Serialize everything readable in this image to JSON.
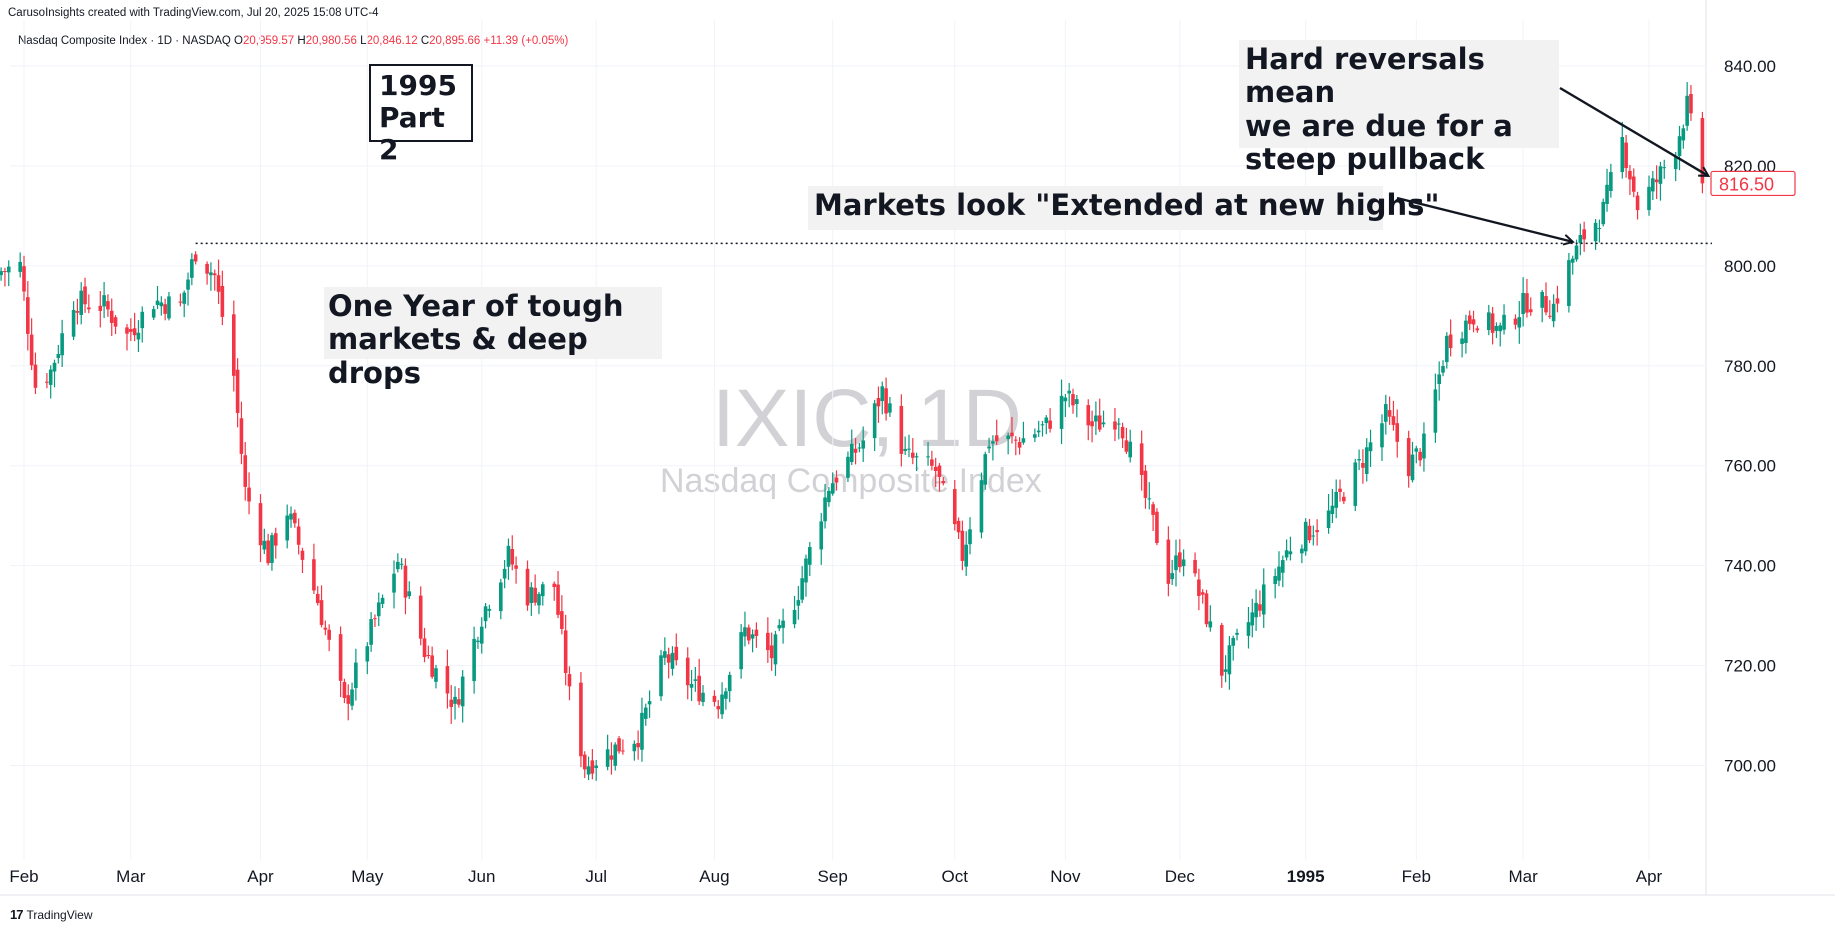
{
  "header": {
    "credit": "CarusoInsights created with TradingView.com, Jul 20, 2025 15:08 UTC-4"
  },
  "legend": {
    "symbol": "Nasdaq Composite Index · 1D · NASDAQ",
    "open_label": "O",
    "open": "20,959.57",
    "high_label": "H",
    "high": "20,980.56",
    "low_label": "L",
    "low": "20,846.12",
    "close_label": "C",
    "close": "20,895.66",
    "change": "+11.39 (+0.05%)"
  },
  "watermark": {
    "ticker": "IXIC, 1D",
    "name": "Nasdaq Composite Index"
  },
  "annotations": {
    "box_1995": {
      "line1": "1995",
      "line2": "Part 2"
    },
    "tough_markets": {
      "line1": "One Year of tough",
      "line2": "markets & deep drops"
    },
    "extended": "Markets look \"Extended at new highs\"",
    "reversals": {
      "line1": "Hard reversals mean",
      "line2": "we are due for a",
      "line3": "steep pullback"
    }
  },
  "branding": {
    "logo": "17",
    "name": "TradingView"
  },
  "colors": {
    "up": "#089981",
    "down": "#f23645",
    "grid": "#f0f3fa",
    "text": "#131722"
  },
  "chart_data": {
    "type": "candlestick",
    "ylim": [
      685,
      845
    ],
    "yticks": [
      700,
      720,
      740,
      760,
      780,
      800,
      820,
      840
    ],
    "ytick_labels": [
      "700.00",
      "720.00",
      "740.00",
      "760.00",
      "780.00",
      "800.00",
      "820.00",
      "840.00"
    ],
    "xticks": [
      {
        "label": "Feb",
        "date": "1994-02-01"
      },
      {
        "label": "Mar",
        "date": "1994-03-01"
      },
      {
        "label": "Apr",
        "date": "1994-04-04"
      },
      {
        "label": "May",
        "date": "1994-05-02"
      },
      {
        "label": "Jun",
        "date": "1994-06-01"
      },
      {
        "label": "Jul",
        "date": "1994-07-01"
      },
      {
        "label": "Aug",
        "date": "1994-08-01"
      },
      {
        "label": "Sep",
        "date": "1994-09-01"
      },
      {
        "label": "Oct",
        "date": "1994-10-03"
      },
      {
        "label": "Nov",
        "date": "1994-11-01"
      },
      {
        "label": "Dec",
        "date": "1994-12-01"
      },
      {
        "label": "1995",
        "date": "1995-01-03"
      },
      {
        "label": "Feb",
        "date": "1995-02-01"
      },
      {
        "label": "Mar",
        "date": "1995-03-01"
      },
      {
        "label": "Apr",
        "date": "1995-04-03"
      }
    ],
    "last_price": 816.5,
    "last_price_label": "816.50",
    "prior_high_level": 804.5,
    "anchors": [
      {
        "date": "1994-01-26",
        "close": 799
      },
      {
        "date": "1994-01-31",
        "close": 800
      },
      {
        "date": "1994-02-04",
        "close": 776
      },
      {
        "date": "1994-02-08",
        "close": 779
      },
      {
        "date": "1994-02-14",
        "close": 793
      },
      {
        "date": "1994-02-22",
        "close": 792
      },
      {
        "date": "1994-02-28",
        "close": 786
      },
      {
        "date": "1994-03-07",
        "close": 793
      },
      {
        "date": "1994-03-14",
        "close": 792
      },
      {
        "date": "1994-03-18",
        "close": 803
      },
      {
        "date": "1994-03-23",
        "close": 798
      },
      {
        "date": "1994-03-28",
        "close": 778
      },
      {
        "date": "1994-03-31",
        "close": 755
      },
      {
        "date": "1994-04-06",
        "close": 742
      },
      {
        "date": "1994-04-11",
        "close": 751
      },
      {
        "date": "1994-04-19",
        "close": 733
      },
      {
        "date": "1994-04-26",
        "close": 712
      },
      {
        "date": "1994-05-02",
        "close": 725
      },
      {
        "date": "1994-05-10",
        "close": 741
      },
      {
        "date": "1994-05-17",
        "close": 723
      },
      {
        "date": "1994-05-25",
        "close": 712
      },
      {
        "date": "1994-06-01",
        "close": 730
      },
      {
        "date": "1994-06-08",
        "close": 742
      },
      {
        "date": "1994-06-13",
        "close": 734
      },
      {
        "date": "1994-06-20",
        "close": 736
      },
      {
        "date": "1994-06-24",
        "close": 714
      },
      {
        "date": "1994-06-28",
        "close": 700
      },
      {
        "date": "1994-07-05",
        "close": 703
      },
      {
        "date": "1994-07-12",
        "close": 706
      },
      {
        "date": "1994-07-19",
        "close": 722
      },
      {
        "date": "1994-07-26",
        "close": 716
      },
      {
        "date": "1994-08-02",
        "close": 713
      },
      {
        "date": "1994-08-09",
        "close": 727
      },
      {
        "date": "1994-08-16",
        "close": 722
      },
      {
        "date": "1994-08-23",
        "close": 735
      },
      {
        "date": "1994-08-31",
        "close": 756
      },
      {
        "date": "1994-09-09",
        "close": 765
      },
      {
        "date": "1994-09-14",
        "close": 775
      },
      {
        "date": "1994-09-20",
        "close": 762
      },
      {
        "date": "1994-09-28",
        "close": 759
      },
      {
        "date": "1994-10-05",
        "close": 742
      },
      {
        "date": "1994-10-12",
        "close": 765
      },
      {
        "date": "1994-10-20",
        "close": 765
      },
      {
        "date": "1994-10-27",
        "close": 768
      },
      {
        "date": "1994-11-01",
        "close": 774
      },
      {
        "date": "1994-11-08",
        "close": 768
      },
      {
        "date": "1994-11-15",
        "close": 770
      },
      {
        "date": "1994-11-23",
        "close": 751
      },
      {
        "date": "1994-11-28",
        "close": 738
      },
      {
        "date": "1994-12-02",
        "close": 743
      },
      {
        "date": "1994-12-08",
        "close": 730
      },
      {
        "date": "1994-12-12",
        "close": 719
      },
      {
        "date": "1994-12-20",
        "close": 730
      },
      {
        "date": "1994-12-30",
        "close": 744
      },
      {
        "date": "1995-01-09",
        "close": 750
      },
      {
        "date": "1995-01-17",
        "close": 760
      },
      {
        "date": "1995-01-24",
        "close": 770
      },
      {
        "date": "1995-01-30",
        "close": 760
      },
      {
        "date": "1995-02-03",
        "close": 764
      },
      {
        "date": "1995-02-09",
        "close": 785
      },
      {
        "date": "1995-02-16",
        "close": 790
      },
      {
        "date": "1995-02-23",
        "close": 787
      },
      {
        "date": "1995-03-02",
        "close": 793
      },
      {
        "date": "1995-03-09",
        "close": 792
      },
      {
        "date": "1995-03-13",
        "close": 800
      },
      {
        "date": "1995-03-17",
        "close": 806
      },
      {
        "date": "1995-03-22",
        "close": 811
      },
      {
        "date": "1995-03-27",
        "close": 825
      },
      {
        "date": "1995-03-31",
        "close": 812
      },
      {
        "date": "1995-04-05",
        "close": 817
      },
      {
        "date": "1995-04-10",
        "close": 824
      },
      {
        "date": "1995-04-13",
        "close": 832
      },
      {
        "date": "1995-04-17",
        "close": 816.5
      }
    ]
  }
}
